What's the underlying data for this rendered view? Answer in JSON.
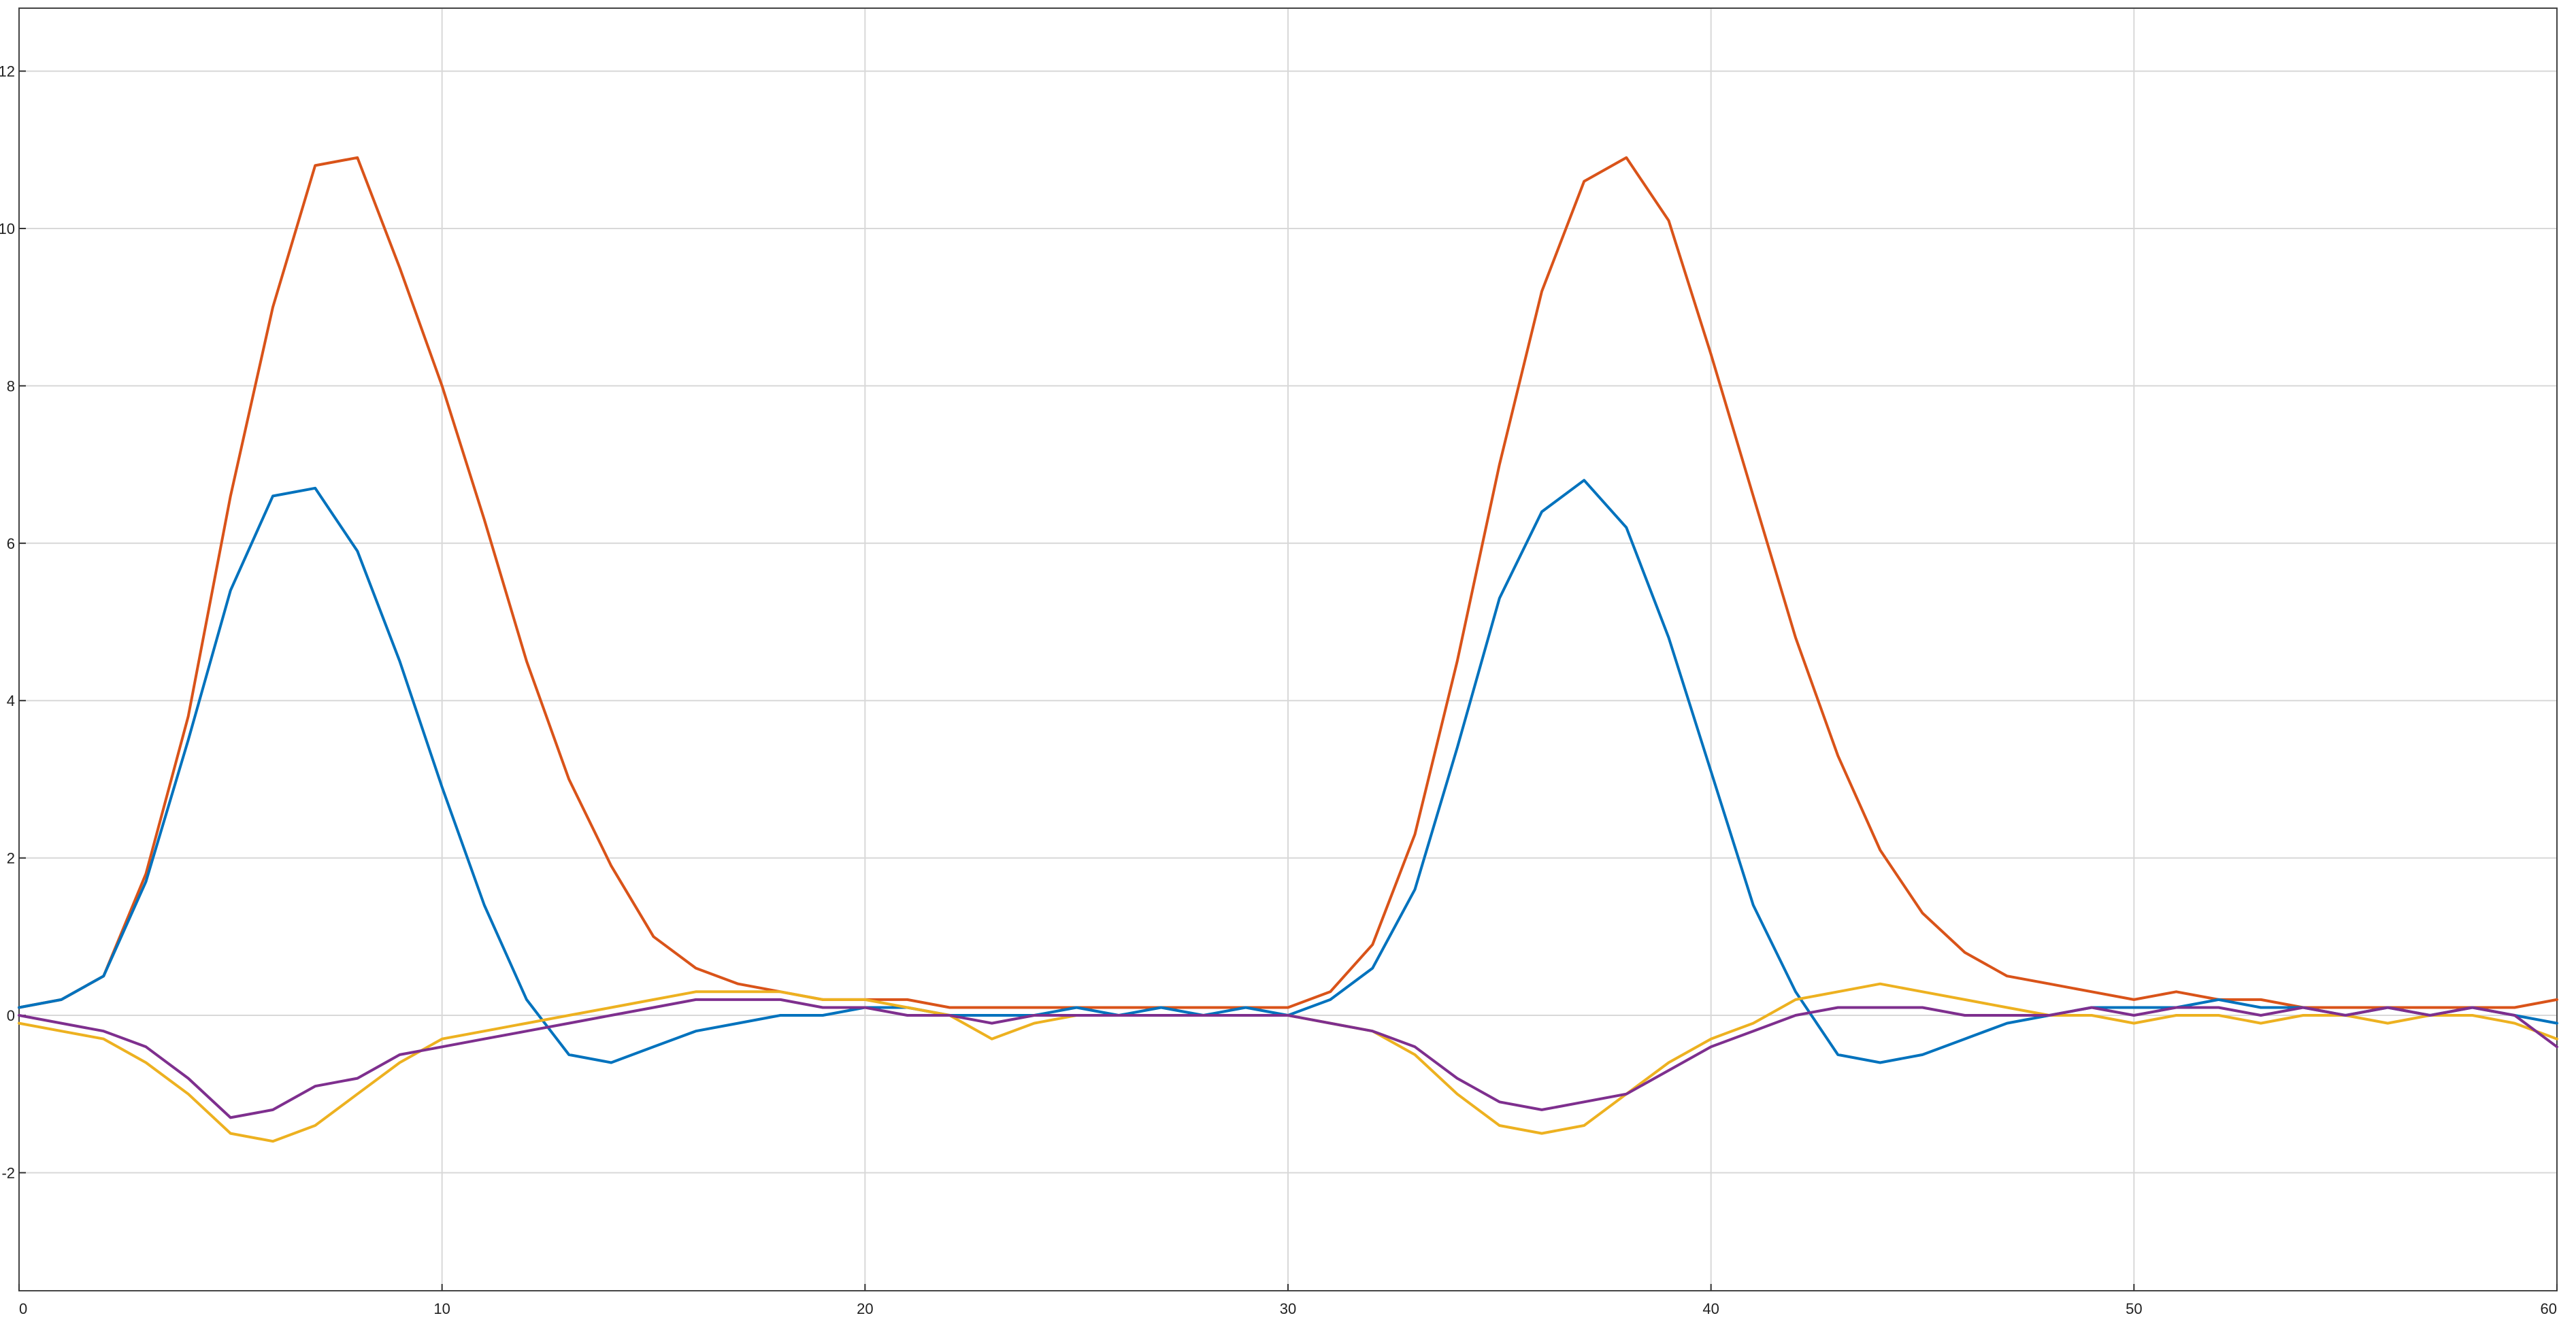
{
  "chart_data": {
    "type": "line",
    "title": "",
    "xlabel": "",
    "ylabel": "",
    "xlim": [
      0,
      60
    ],
    "ylim": [
      -3.5,
      12.8
    ],
    "x_ticks": [
      0,
      10,
      20,
      30,
      40,
      50,
      60
    ],
    "y_ticks": [
      -2,
      0,
      2,
      4,
      6,
      8,
      10,
      12
    ],
    "x_tick_labels": [
      "0",
      "10",
      "20",
      "30",
      "40",
      "50",
      "60"
    ],
    "y_tick_labels": [
      "-2",
      "0",
      "2",
      "4",
      "6",
      "8",
      "10",
      "12"
    ],
    "grid": true,
    "legend": "none",
    "x": [
      0,
      1,
      2,
      3,
      4,
      5,
      6,
      7,
      8,
      9,
      10,
      11,
      12,
      13,
      14,
      15,
      16,
      17,
      18,
      19,
      20,
      21,
      22,
      23,
      24,
      25,
      26,
      27,
      28,
      29,
      30,
      31,
      32,
      33,
      34,
      35,
      36,
      37,
      38,
      39,
      40,
      41,
      42,
      43,
      44,
      45,
      46,
      47,
      48,
      49,
      50,
      51,
      52,
      53,
      54,
      55,
      56,
      57,
      58,
      59,
      60
    ],
    "series": [
      {
        "color": "#D95319",
        "values": [
          0.1,
          0.2,
          0.5,
          1.8,
          3.8,
          6.6,
          9.0,
          10.8,
          10.9,
          9.5,
          8.0,
          6.3,
          4.5,
          3.0,
          1.9,
          1.0,
          0.6,
          0.4,
          0.3,
          0.2,
          0.2,
          0.2,
          0.1,
          0.1,
          0.1,
          0.1,
          0.1,
          0.1,
          0.1,
          0.1,
          0.1,
          0.3,
          0.9,
          2.3,
          4.5,
          7.0,
          9.2,
          10.6,
          10.9,
          10.1,
          8.4,
          6.6,
          4.8,
          3.3,
          2.1,
          1.3,
          0.8,
          0.5,
          0.4,
          0.3,
          0.2,
          0.3,
          0.2,
          0.2,
          0.1,
          0.1,
          0.1,
          0.1,
          0.1,
          0.1,
          0.2
        ]
      },
      {
        "color": "#0072BD",
        "values": [
          0.1,
          0.2,
          0.5,
          1.7,
          3.5,
          5.4,
          6.6,
          6.7,
          5.9,
          4.5,
          2.9,
          1.4,
          0.2,
          -0.5,
          -0.6,
          -0.4,
          -0.2,
          -0.1,
          0.0,
          0.0,
          0.1,
          0.1,
          0.0,
          0.0,
          0.0,
          0.1,
          0.0,
          0.1,
          0.0,
          0.1,
          0.0,
          0.2,
          0.6,
          1.6,
          3.4,
          5.3,
          6.4,
          6.8,
          6.2,
          4.8,
          3.1,
          1.4,
          0.3,
          -0.5,
          -0.6,
          -0.5,
          -0.3,
          -0.1,
          0.0,
          0.1,
          0.1,
          0.1,
          0.2,
          0.1,
          0.1,
          0.0,
          0.1,
          0.0,
          0.1,
          0.0,
          -0.1
        ]
      },
      {
        "color": "#EDB120",
        "values": [
          -0.1,
          -0.2,
          -0.3,
          -0.6,
          -1.0,
          -1.5,
          -1.6,
          -1.4,
          -1.0,
          -0.6,
          -0.3,
          -0.2,
          -0.1,
          0.0,
          0.1,
          0.2,
          0.3,
          0.3,
          0.3,
          0.2,
          0.2,
          0.1,
          0.0,
          -0.3,
          -0.1,
          0.0,
          0.0,
          0.0,
          0.0,
          0.0,
          0.0,
          -0.1,
          -0.2,
          -0.5,
          -1.0,
          -1.4,
          -1.5,
          -1.4,
          -1.0,
          -0.6,
          -0.3,
          -0.1,
          0.2,
          0.3,
          0.4,
          0.3,
          0.2,
          0.1,
          0.0,
          0.0,
          -0.1,
          0.0,
          0.0,
          -0.1,
          0.0,
          0.0,
          -0.1,
          0.0,
          0.0,
          -0.1,
          -0.3
        ]
      },
      {
        "color": "#7E2F8E",
        "values": [
          0.0,
          -0.1,
          -0.2,
          -0.4,
          -0.8,
          -1.3,
          -1.2,
          -0.9,
          -0.8,
          -0.5,
          -0.4,
          -0.3,
          -0.2,
          -0.1,
          0.0,
          0.1,
          0.2,
          0.2,
          0.2,
          0.1,
          0.1,
          0.0,
          0.0,
          -0.1,
          0.0,
          0.0,
          0.0,
          0.0,
          0.0,
          0.0,
          0.0,
          -0.1,
          -0.2,
          -0.4,
          -0.8,
          -1.1,
          -1.2,
          -1.1,
          -1.0,
          -0.7,
          -0.4,
          -0.2,
          0.0,
          0.1,
          0.1,
          0.1,
          0.0,
          0.0,
          0.0,
          0.1,
          0.0,
          0.1,
          0.1,
          0.0,
          0.1,
          0.0,
          0.1,
          0.0,
          0.1,
          0.0,
          -0.4
        ]
      }
    ]
  }
}
